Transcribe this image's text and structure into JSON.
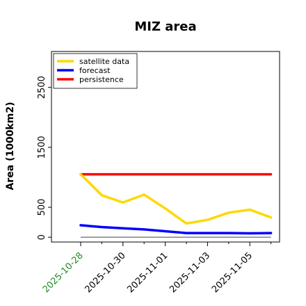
{
  "chart_data": {
    "type": "line",
    "title": "MIZ area",
    "xlabel": "",
    "ylabel": "Area (1000km2)",
    "x": [
      "2025-10-28",
      "2025-10-29",
      "2025-10-30",
      "2025-10-31",
      "2025-11-01",
      "2025-11-02",
      "2025-11-03",
      "2025-11-04",
      "2025-11-05",
      "2025-11-06"
    ],
    "x_tick_labels": [
      "2025-10-28",
      "2025-10-30",
      "2025-11-01",
      "2025-11-03",
      "2025-11-05"
    ],
    "x_tick_colors": [
      "#228b22",
      "#000000",
      "#000000",
      "#000000",
      "#000000"
    ],
    "y_ticks": [
      0,
      500,
      1500,
      2500
    ],
    "ylim": [
      -80,
      3100
    ],
    "grid": false,
    "legend_position": "top-left",
    "series": [
      {
        "name": "satellite data",
        "color": "#FFD700",
        "values": [
          1050,
          700,
          580,
          710,
          480,
          230,
          290,
          410,
          460,
          330
        ]
      },
      {
        "name": "forecast",
        "color": "#0000FF",
        "values": [
          200,
          170,
          150,
          130,
          100,
          70,
          70,
          70,
          65,
          70
        ]
      },
      {
        "name": "persistence",
        "color": "#FF0000",
        "values": [
          1050,
          1050,
          1050,
          1050,
          1050,
          1050,
          1050,
          1050,
          1050,
          1050
        ]
      }
    ],
    "baseline": {
      "value": 0,
      "color": "#808080"
    }
  }
}
